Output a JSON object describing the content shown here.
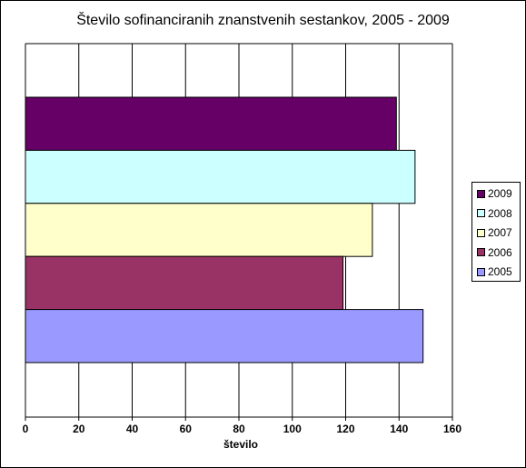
{
  "chart_data": {
    "type": "bar",
    "orientation": "horizontal",
    "title": "Število sofinanciranih znanstvenih sestankov, 2005 - 2009",
    "xlabel": "število",
    "ylabel": "",
    "xlim": [
      0,
      160
    ],
    "x_ticks": [
      "0",
      "20",
      "40",
      "60",
      "80",
      "100",
      "120",
      "140",
      "160"
    ],
    "grid": "vertical",
    "legend_position": "right",
    "series": [
      {
        "name": "2009",
        "value": 139,
        "color": "#660066"
      },
      {
        "name": "2008",
        "value": 146,
        "color": "#CCFFFF"
      },
      {
        "name": "2007",
        "value": 130,
        "color": "#FFFFCC"
      },
      {
        "name": "2006",
        "value": 119,
        "color": "#993366"
      },
      {
        "name": "2005",
        "value": 149,
        "color": "#9999FF"
      }
    ]
  }
}
